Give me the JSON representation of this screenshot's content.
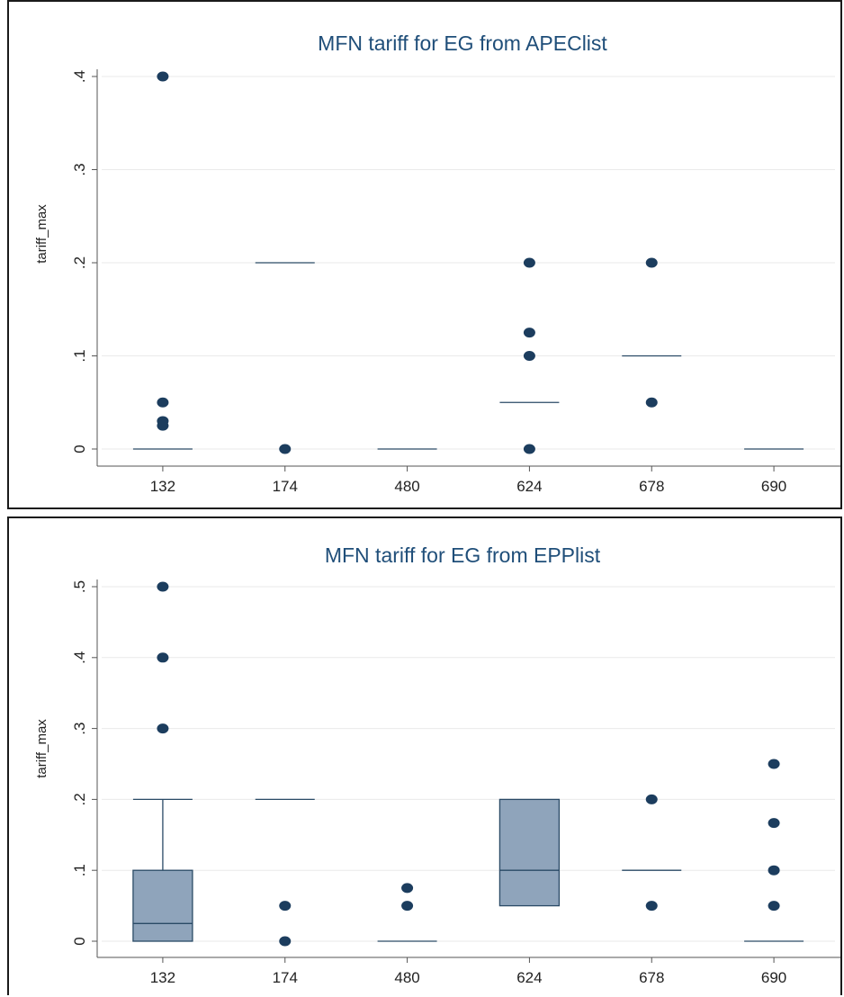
{
  "chart_data": [
    {
      "type": "box",
      "title": "MFN tariff for EG from APEClist",
      "ylabel": "tariff_max",
      "xlabel": "",
      "ylim": [
        0,
        0.4
      ],
      "yticks": [
        0,
        0.1,
        0.2,
        0.3,
        0.4
      ],
      "ytick_labels": [
        "0",
        ".1",
        ".2",
        ".3",
        ".4"
      ],
      "categories": [
        "132",
        "174",
        "480",
        "624",
        "678",
        "690"
      ],
      "grid": true,
      "boxes": [
        {
          "category": "132",
          "q1": 0,
          "median": 0,
          "q3": 0,
          "whisker_low": 0,
          "whisker_high": 0,
          "outliers": [
            0.4,
            0.05,
            0.03,
            0.025
          ]
        },
        {
          "category": "174",
          "q1": 0.2,
          "median": 0.2,
          "q3": 0.2,
          "whisker_low": 0.2,
          "whisker_high": 0.2,
          "outliers": [
            0
          ]
        },
        {
          "category": "480",
          "q1": 0,
          "median": 0,
          "q3": 0,
          "whisker_low": 0,
          "whisker_high": 0,
          "outliers": []
        },
        {
          "category": "624",
          "q1": 0.05,
          "median": 0.05,
          "q3": 0.05,
          "whisker_low": 0.05,
          "whisker_high": 0.05,
          "outliers": [
            0.2,
            0.125,
            0.1,
            0
          ]
        },
        {
          "category": "678",
          "q1": 0.1,
          "median": 0.1,
          "q3": 0.1,
          "whisker_low": 0.1,
          "whisker_high": 0.1,
          "outliers": [
            0.2,
            0.05
          ]
        },
        {
          "category": "690",
          "q1": 0,
          "median": 0,
          "q3": 0,
          "whisker_low": 0,
          "whisker_high": 0,
          "outliers": []
        }
      ]
    },
    {
      "type": "box",
      "title": "MFN tariff for EG from EPPlist",
      "ylabel": "tariff_max",
      "xlabel": "",
      "ylim": [
        0,
        0.5
      ],
      "yticks": [
        0,
        0.1,
        0.2,
        0.3,
        0.4,
        0.5
      ],
      "ytick_labels": [
        "0",
        ".1",
        ".2",
        ".3",
        ".4",
        ".5"
      ],
      "categories": [
        "132",
        "174",
        "480",
        "624",
        "678",
        "690"
      ],
      "grid": true,
      "boxes": [
        {
          "category": "132",
          "q1": 0,
          "median": 0.025,
          "q3": 0.1,
          "whisker_low": 0,
          "whisker_high": 0.2,
          "outliers": [
            0.5,
            0.4,
            0.3
          ]
        },
        {
          "category": "174",
          "q1": 0.2,
          "median": 0.2,
          "q3": 0.2,
          "whisker_low": 0.2,
          "whisker_high": 0.2,
          "outliers": [
            0.05,
            0
          ]
        },
        {
          "category": "480",
          "q1": 0,
          "median": 0,
          "q3": 0,
          "whisker_low": 0,
          "whisker_high": 0,
          "outliers": [
            0.075,
            0.05
          ]
        },
        {
          "category": "624",
          "q1": 0.05,
          "median": 0.1,
          "q3": 0.2,
          "whisker_low": 0.05,
          "whisker_high": 0.2,
          "outliers": []
        },
        {
          "category": "678",
          "q1": 0.1,
          "median": 0.1,
          "q3": 0.1,
          "whisker_low": 0.1,
          "whisker_high": 0.1,
          "outliers": [
            0.2,
            0.05
          ]
        },
        {
          "category": "690",
          "q1": 0,
          "median": 0,
          "q3": 0,
          "whisker_low": 0,
          "whisker_high": 0,
          "outliers": [
            0.25,
            0.1667,
            0.1,
            0.05
          ]
        }
      ]
    }
  ],
  "colors": {
    "title": "#1f4e79",
    "box_fill": "#8fa4bb",
    "box_stroke": "#2a4a66",
    "marker": "#1c3d5e",
    "grid": "#eaeaea"
  }
}
